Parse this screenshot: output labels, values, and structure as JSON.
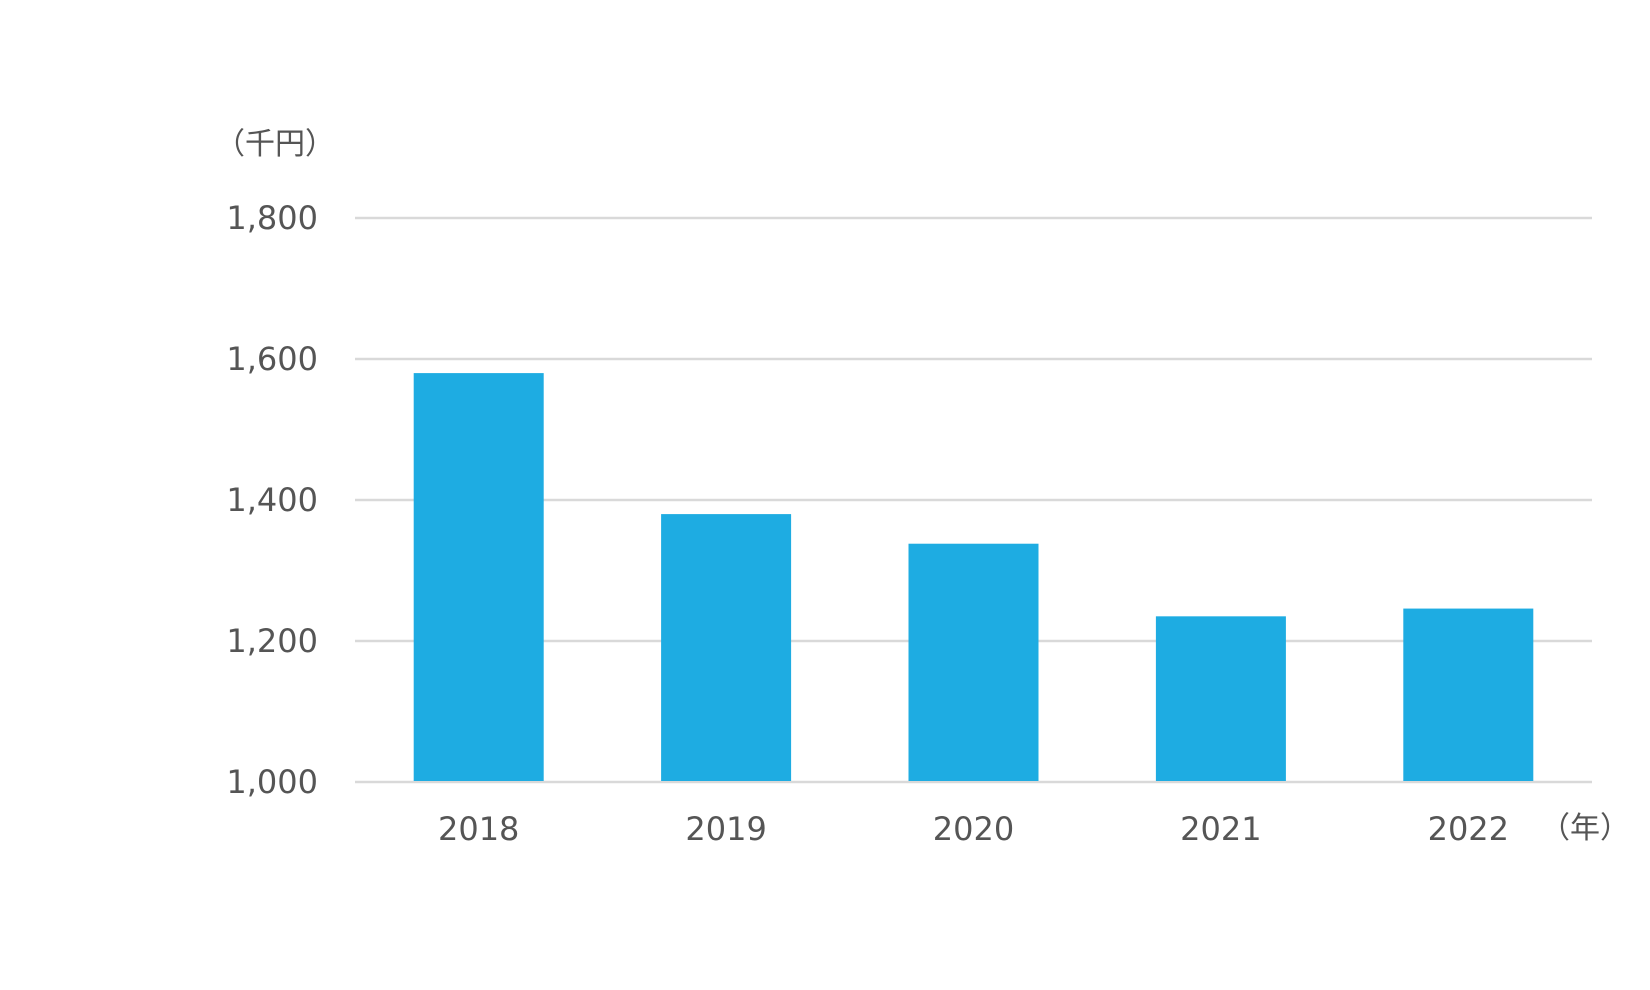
{
  "chart_data": {
    "type": "bar",
    "title": "",
    "ylabel": "（千円）",
    "xlabel": "（年）",
    "categories": [
      "2018",
      "2019",
      "2020",
      "2021",
      "2022"
    ],
    "values": [
      1580,
      1380,
      1338,
      1235,
      1246
    ],
    "ylim": [
      1000,
      1800
    ],
    "yticks": [
      1000,
      1200,
      1400,
      1600,
      1800
    ],
    "ytick_labels": [
      "1,000",
      "1,200",
      "1,400",
      "1,600",
      "1,800"
    ],
    "grid": true,
    "legend": "none",
    "bar_color": "#1eace2"
  }
}
